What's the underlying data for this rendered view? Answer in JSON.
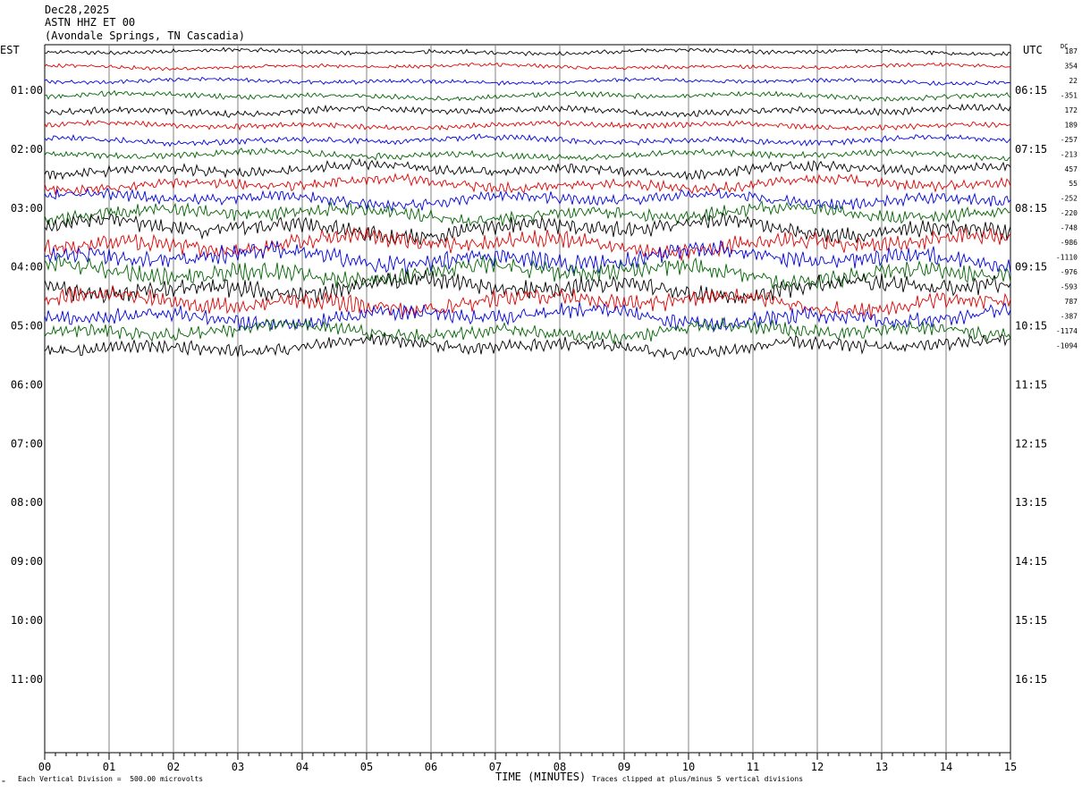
{
  "header": {
    "date": "Dec28,2025",
    "station": "ASTN HHZ ET 00",
    "location": "(Avondale Springs, TN Cascadia)"
  },
  "left_timezone": "EST",
  "right_timezone": "UTC",
  "dc_label": "DC",
  "footer": {
    "scale_note": "Each Vertical Division =  500.00 microvolts",
    "clip_note": "Traces clipped at plus/minus 5 vertical divisions",
    "mark": "≈"
  },
  "colors": {
    "trace_cycle": [
      "#000000",
      "#e00000",
      "#0000e0",
      "#006400"
    ],
    "grid": "#808080"
  },
  "chart_data": {
    "type": "line",
    "title": "ASTN HHZ ET 00",
    "xlabel": "TIME (MINUTES)",
    "x_range": [
      0,
      15
    ],
    "x_ticks": [
      "00",
      "01",
      "02",
      "03",
      "04",
      "05",
      "06",
      "07",
      "08",
      "09",
      "10",
      "11",
      "12",
      "13",
      "14",
      "15"
    ],
    "left_hour_labels": [
      "01:00",
      "02:00",
      "03:00",
      "04:00",
      "05:00",
      "06:00",
      "07:00",
      "08:00",
      "09:00",
      "10:00",
      "11:00"
    ],
    "right_hour_labels": [
      "06:15",
      "07:15",
      "08:15",
      "09:15",
      "10:15",
      "11:15",
      "12:15",
      "13:15",
      "14:15",
      "15:15",
      "16:15"
    ],
    "rows_per_hour": 4,
    "traces_drawn": 21,
    "dc_offsets": [
      "187",
      "354",
      "22",
      "-351",
      "172",
      "189",
      "-257",
      "-213",
      "457",
      "55",
      "-252",
      "-220",
      "-748",
      "-986",
      "-1110",
      "-976",
      "-593",
      "787",
      "-387",
      "-1174",
      "-1094"
    ],
    "trace_amplitude": [
      0.22,
      0.2,
      0.22,
      0.28,
      0.35,
      0.3,
      0.32,
      0.35,
      0.55,
      0.55,
      0.6,
      0.7,
      0.85,
      0.9,
      0.95,
      0.95,
      0.95,
      0.9,
      0.85,
      0.75,
      0.7
    ],
    "clip_divisions": 5,
    "vertical_division_microvolts": 500
  }
}
